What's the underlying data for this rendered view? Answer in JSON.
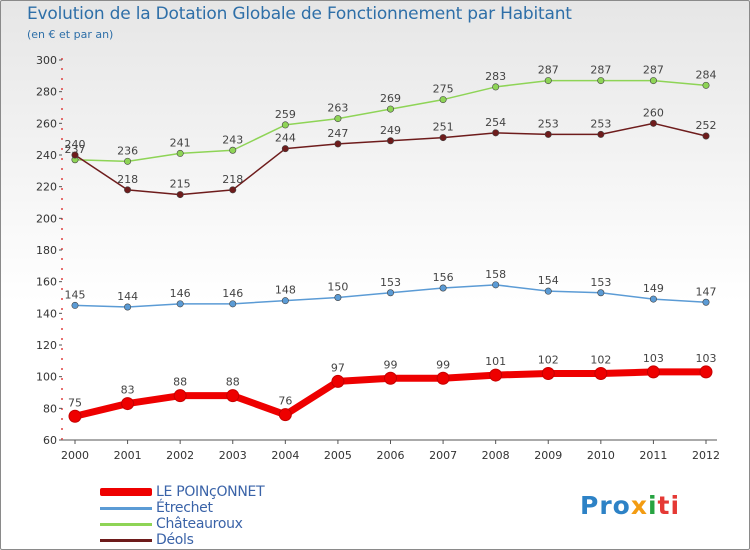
{
  "chart_data": {
    "type": "line",
    "title": "Evolution de la Dotation Globale de Fonctionnement par Habitant",
    "subtitle": "(en € et par an)",
    "xlabel": "",
    "ylabel": "",
    "ylim": [
      60,
      300
    ],
    "yticks": [
      "60",
      "80",
      "100",
      "120",
      "140",
      "160",
      "180",
      "200",
      "220",
      "240",
      "260",
      "280",
      "300"
    ],
    "categories": [
      "2000",
      "2001",
      "2002",
      "2003",
      "2004",
      "2005",
      "2006",
      "2007",
      "2008",
      "2009",
      "2010",
      "2011",
      "2012"
    ],
    "grid": false,
    "legend_position": "bottom-left",
    "series": [
      {
        "name": "LE POINçONNET",
        "color": "#ee0000",
        "values": [
          75,
          83,
          88,
          88,
          76,
          97,
          99,
          99,
          101,
          102,
          102,
          103,
          103
        ]
      },
      {
        "name": "Étrechet",
        "color": "#5b9bd5",
        "values": [
          145,
          144,
          146,
          146,
          148,
          150,
          153,
          156,
          158,
          154,
          153,
          149,
          147
        ]
      },
      {
        "name": "Châteauroux",
        "color": "#8ed456",
        "values": [
          237,
          236,
          241,
          243,
          259,
          263,
          269,
          275,
          283,
          287,
          287,
          287,
          284
        ]
      },
      {
        "name": "Déols",
        "color": "#6e1c1c",
        "values": [
          240,
          218,
          215,
          218,
          244,
          247,
          249,
          251,
          254,
          253,
          253,
          260,
          252
        ]
      }
    ]
  },
  "logo": {
    "parts": [
      "Pro",
      "x",
      "i",
      "ti"
    ]
  }
}
